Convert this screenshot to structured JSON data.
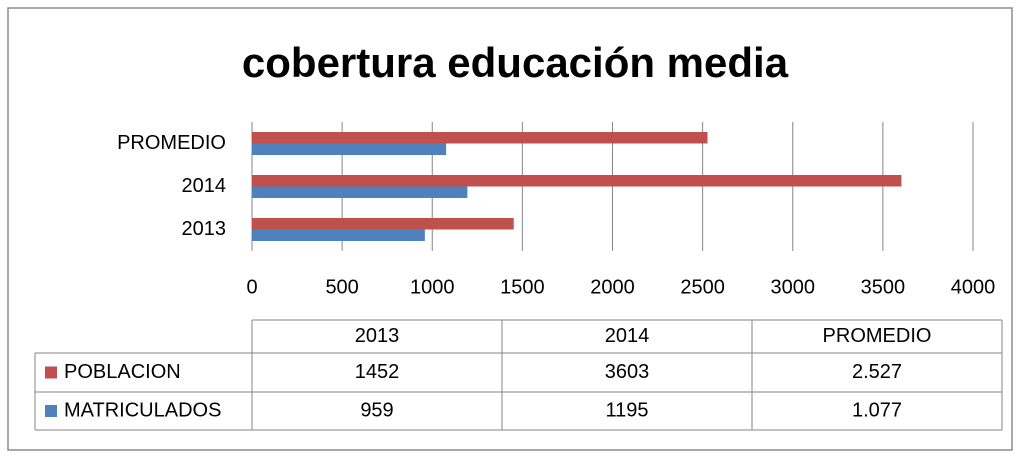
{
  "chart_data": {
    "type": "bar",
    "orientation": "horizontal",
    "title": "cobertura educación  media",
    "categories": [
      "2013",
      "2014",
      "PROMEDIO"
    ],
    "series": [
      {
        "name": "POBLACION",
        "color": "#c0504d",
        "values": [
          1452,
          3603,
          2527
        ],
        "value_labels": [
          "1452",
          "3603",
          "2.527"
        ]
      },
      {
        "name": "MATRICULADOS",
        "color": "#4f81bd",
        "values": [
          959,
          1195,
          1077
        ],
        "value_labels": [
          "959",
          "1195",
          "1.077"
        ]
      }
    ],
    "xlim": [
      0,
      4000
    ],
    "xticks": [
      0,
      500,
      1000,
      1500,
      2000,
      2500,
      3000,
      3500,
      4000
    ],
    "grid": true,
    "data_table": true
  }
}
